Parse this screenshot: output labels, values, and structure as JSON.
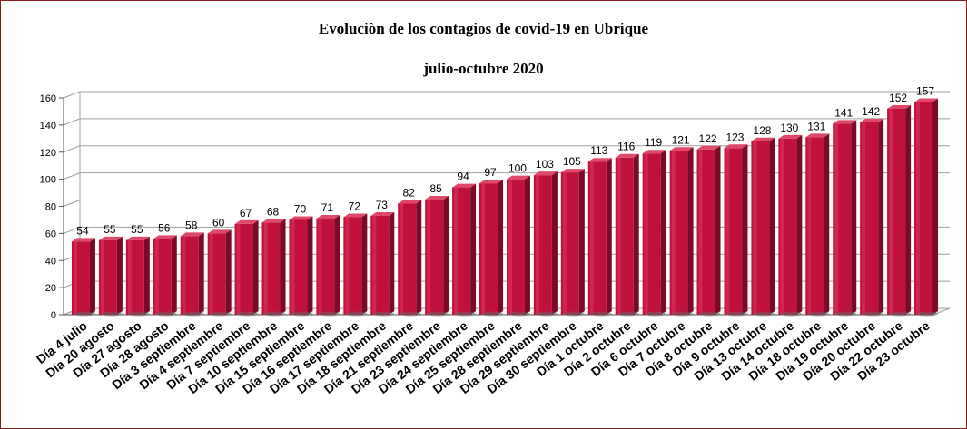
{
  "chart_data": {
    "type": "bar",
    "title": "Evoluciòn de los contagios de covid-19 en Ubrique",
    "subtitle": "julio-octubre 2020",
    "xlabel": "",
    "ylabel": "",
    "ylim": [
      0,
      160
    ],
    "yticks": [
      0,
      20,
      40,
      60,
      80,
      100,
      120,
      140,
      160
    ],
    "grid": true,
    "categories": [
      "Día 4 julio",
      "Día 20 agosto",
      "Día 27 agosto",
      "Día 28 agosto",
      "Día 3 septiembre",
      "Día 4 septiembre",
      "Día 7 septiembre",
      "Día 10 septiembre",
      "Día 15 septiembre",
      "Día 16 septiembre",
      "Día 17 septiembre",
      "Día 18 septiembre",
      "Día 21 septiembre",
      "Día 23 septiembre",
      "Día 24 septiembre",
      "Día 25 septiembre",
      "Día 28 septiembre",
      "Día 29 septiembre",
      "Día 30 septiembre",
      "Día 1 octubre",
      "Día 2 octubre",
      "Día 6 octubre",
      "Día 7 octubre",
      "Día 8 octubre",
      "Día 9 octubre",
      "Día 13 octubre",
      "Día 14 octubre",
      "Día 18 octubre",
      "Día 19 octubre",
      "Día 20 octubre",
      "Día 22 octubre",
      "Día 23 octubre"
    ],
    "values": [
      54,
      55,
      55,
      56,
      58,
      60,
      67,
      68,
      70,
      71,
      72,
      73,
      82,
      85,
      94,
      97,
      100,
      103,
      105,
      113,
      116,
      119,
      121,
      122,
      123,
      128,
      130,
      131,
      141,
      142,
      152,
      157
    ],
    "colors": {
      "bar": "#c0103c",
      "bar_dark": "#7a0a26",
      "bar_top": "#e0486a",
      "grid": "#a0a0a0",
      "frame": "#8b1a1a"
    }
  }
}
